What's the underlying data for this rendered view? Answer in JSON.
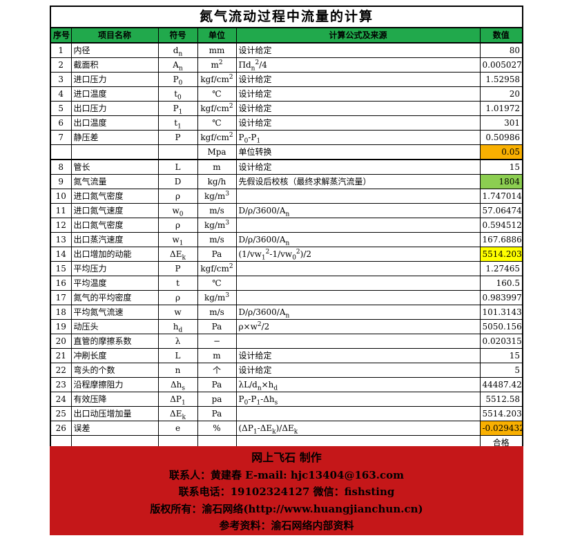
{
  "title": "氮气流动过程中流量的计算",
  "header": {
    "columns": [
      "序号",
      "项目名称",
      "符号",
      "单位",
      "计算公式及来源",
      "数值"
    ]
  },
  "rows": [
    {
      "no": "1",
      "name": "内径",
      "symbol": "d~n~",
      "unit": "mm",
      "formula": "设计给定",
      "value": "80"
    },
    {
      "no": "2",
      "name": "截面积",
      "symbol": "A~n~",
      "unit": "m^2^",
      "formula": "Πd~n~^2^/4",
      "value": "0.005027"
    },
    {
      "no": "3",
      "name": "进口压力",
      "symbol": "P~0~",
      "unit": "kgf/cm^2^",
      "formula": "设计给定",
      "value": "1.52958"
    },
    {
      "no": "4",
      "name": "进口温度",
      "symbol": "t~0~",
      "unit": "℃",
      "formula": "设计给定",
      "value": "20"
    },
    {
      "no": "5",
      "name": "出口压力",
      "symbol": "P~1~",
      "unit": "kgf/cm^2^",
      "formula": "设计给定",
      "value": "1.01972"
    },
    {
      "no": "6",
      "name": "出口温度",
      "symbol": "t~1~",
      "unit": "℃",
      "formula": "设计给定",
      "value": "301"
    },
    {
      "no": "7",
      "name": "静压差",
      "symbol": "P",
      "unit": "kgf/cm^2^",
      "formula": "P~0~-P~1~",
      "value": "0.50986"
    },
    {
      "no": "",
      "name": "",
      "symbol": "",
      "unit": "Mpa",
      "formula": "单位转换",
      "value": "0.05",
      "bg": "orange",
      "thick_bottom": true
    },
    {
      "no": "8",
      "name": "管长",
      "symbol": "L",
      "unit": "m",
      "formula": "设计给定",
      "value": "15"
    },
    {
      "no": "9",
      "name": "氮气流量",
      "symbol": "D",
      "unit": "kg/h",
      "formula": "先假设后校核（最终求解蒸汽流量）",
      "value": "1804",
      "bg": "green"
    },
    {
      "no": "10",
      "name": "进口氮气密度",
      "symbol": "ρ",
      "unit": "kg/m^3^",
      "formula": "",
      "value": "1.747014"
    },
    {
      "no": "11",
      "name": "进口氮气速度",
      "symbol": "w~0~",
      "unit": "m/s",
      "formula": "D/ρ/3600/A~n~",
      "value": "57.06474"
    },
    {
      "no": "12",
      "name": "出口氮气密度",
      "symbol": "ρ",
      "unit": "kg/m^3^",
      "formula": "",
      "value": "0.594512"
    },
    {
      "no": "13",
      "name": "出口蒸汽速度",
      "symbol": "w~1~",
      "unit": "m/s",
      "formula": "D/ρ/3600/A~n~",
      "value": "167.6886"
    },
    {
      "no": "14",
      "name": "出口增加的动能",
      "symbol": "ΔE~k~",
      "unit": "Pa",
      "formula": "(1/vw~1~^2^-1/vw~0~^2^)/2",
      "value": "5514.203",
      "bg": "yellow"
    },
    {
      "no": "15",
      "name": "平均压力",
      "symbol": "P",
      "unit": "kgf/cm^2^",
      "formula": "",
      "value": "1.27465"
    },
    {
      "no": "16",
      "name": "平均温度",
      "symbol": "t",
      "unit": "℃",
      "formula": "",
      "value": "160.5"
    },
    {
      "no": "17",
      "name": "氮气的平均密度",
      "symbol": "ρ",
      "unit": "kg/m^3^",
      "formula": "",
      "value": "0.983997"
    },
    {
      "no": "18",
      "name": "平均氮气流速",
      "symbol": "w",
      "unit": "m/s",
      "formula": "D/ρ/3600/A~n~",
      "value": "101.3143"
    },
    {
      "no": "19",
      "name": "动压头",
      "symbol": "h~d~",
      "unit": "Pa",
      "formula": "ρ×w^2^/2",
      "value": "5050.156"
    },
    {
      "no": "20",
      "name": "直管的摩擦系数",
      "symbol": "λ",
      "unit": "−",
      "formula": "",
      "value": "0.020315"
    },
    {
      "no": "21",
      "name": "冲刷长度",
      "symbol": "L",
      "unit": "m",
      "formula": "设计给定",
      "value": "15"
    },
    {
      "no": "22",
      "name": "弯头的个数",
      "symbol": "n",
      "unit": "个",
      "formula": "设计给定",
      "value": "5"
    },
    {
      "no": "23",
      "name": "沿程摩擦阻力",
      "symbol": "Δh~s~",
      "unit": "Pa",
      "formula": "λL/d~n~×h~d~",
      "value": "44487.42"
    },
    {
      "no": "24",
      "name": "有效压降",
      "symbol": "ΔP~1~",
      "unit": "pa",
      "formula": "P~0~-P~1~-Δh~s~",
      "value": "5512.58"
    },
    {
      "no": "25",
      "name": "出口动压增加量",
      "symbol": "ΔE~k~",
      "unit": "Pa",
      "formula": "",
      "value": "5514.203"
    },
    {
      "no": "26",
      "name": "误差",
      "symbol": "e",
      "unit": "%",
      "formula": "(ΔP~1~-ΔE~k~)/ΔE~k~",
      "value": "-0.029432",
      "bg": "orange"
    },
    {
      "no": "",
      "name": "",
      "symbol": "",
      "unit": "",
      "formula": "",
      "value": "合格",
      "center": true
    }
  ],
  "footer": {
    "lines": [
      "网上飞石 制作",
      "联系人：黄建春 E-mail: hjc13404@163.com",
      "联系电话：19102324127 微信：fishsting",
      "版权所有：渝石网络(http://www.huangjianchun.cn)",
      "参考资料：渝石网络内部资料"
    ]
  },
  "colors": {
    "header_green": "#21A94C",
    "highlight_green": "#8CCE51",
    "highlight_orange": "#F9B001",
    "highlight_yellow": "#FFFF00",
    "footer_red": "#C51719",
    "border_black": "#000000"
  }
}
